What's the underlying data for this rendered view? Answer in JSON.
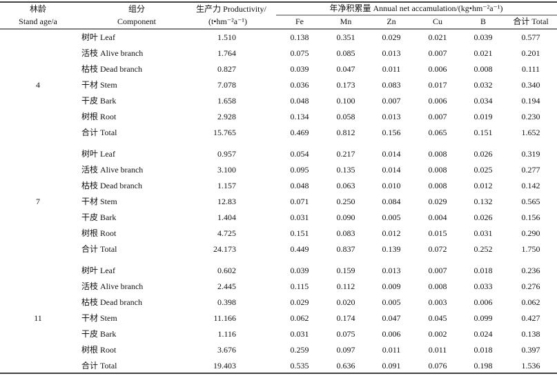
{
  "header": {
    "age": [
      "林龄",
      "Stand age/a"
    ],
    "component": [
      "组分",
      "Component"
    ],
    "productivity": [
      "生产力 Productivity/",
      "(t•hm⁻²a⁻¹)"
    ],
    "accumulation": "年净积累量 Annual net accamulation/(kg•hm⁻²a⁻¹)",
    "elements": [
      "Fe",
      "Mn",
      "Zn",
      "Cu",
      "B",
      "合计 Total"
    ]
  },
  "table": {
    "groups": [
      {
        "age": "4",
        "rows": [
          [
            "树叶 Leaf",
            "1.510",
            "0.138",
            "0.351",
            "0.029",
            "0.021",
            "0.039",
            "0.577"
          ],
          [
            "活枝 Alive branch",
            "1.764",
            "0.075",
            "0.085",
            "0.013",
            "0.007",
            "0.021",
            "0.201"
          ],
          [
            "枯枝 Dead branch",
            "0.827",
            "0.039",
            "0.047",
            "0.011",
            "0.006",
            "0.008",
            "0.111"
          ],
          [
            "干材 Stem",
            "7.078",
            "0.036",
            "0.173",
            "0.083",
            "0.017",
            "0.032",
            "0.340"
          ],
          [
            "干皮 Bark",
            "1.658",
            "0.048",
            "0.100",
            "0.007",
            "0.006",
            "0.034",
            "0.194"
          ],
          [
            "树根 Root",
            "2.928",
            "0.134",
            "0.058",
            "0.013",
            "0.007",
            "0.019",
            "0.230"
          ],
          [
            "合计 Total",
            "15.765",
            "0.469",
            "0.812",
            "0.156",
            "0.065",
            "0.151",
            "1.652"
          ]
        ]
      },
      {
        "age": "7",
        "rows": [
          [
            "树叶 Leaf",
            "0.957",
            "0.054",
            "0.217",
            "0.014",
            "0.008",
            "0.026",
            "0.319"
          ],
          [
            "活枝 Alive branch",
            "3.100",
            "0.095",
            "0.135",
            "0.014",
            "0.008",
            "0.025",
            "0.277"
          ],
          [
            "枯枝 Dead branch",
            "1.157",
            "0.048",
            "0.063",
            "0.010",
            "0.008",
            "0.012",
            "0.142"
          ],
          [
            "干材 Stem",
            "12.83",
            "0.071",
            "0.250",
            "0.084",
            "0.029",
            "0.132",
            "0.565"
          ],
          [
            "干皮 Bark",
            "1.404",
            "0.031",
            "0.090",
            "0.005",
            "0.004",
            "0.026",
            "0.156"
          ],
          [
            "树根 Root",
            "4.725",
            "0.151",
            "0.083",
            "0.012",
            "0.015",
            "0.031",
            "0.290"
          ],
          [
            "合计 Total",
            "24.173",
            "0.449",
            "0.837",
            "0.139",
            "0.072",
            "0.252",
            "1.750"
          ]
        ]
      },
      {
        "age": "11",
        "rows": [
          [
            "树叶 Leaf",
            "0.602",
            "0.039",
            "0.159",
            "0.013",
            "0.007",
            "0.018",
            "0.236"
          ],
          [
            "活枝 Alive branch",
            "2.445",
            "0.115",
            "0.112",
            "0.009",
            "0.008",
            "0.033",
            "0.276"
          ],
          [
            "枯枝 Dead branch",
            "0.398",
            "0.029",
            "0.020",
            "0.005",
            "0.003",
            "0.006",
            "0.062"
          ],
          [
            "干材 Stem",
            "11.166",
            "0.062",
            "0.174",
            "0.047",
            "0.045",
            "0.099",
            "0.427"
          ],
          [
            "干皮 Bark",
            "1.116",
            "0.031",
            "0.075",
            "0.006",
            "0.002",
            "0.024",
            "0.138"
          ],
          [
            "树根 Root",
            "3.676",
            "0.259",
            "0.097",
            "0.011",
            "0.011",
            "0.018",
            "0.397"
          ],
          [
            "合计 Total",
            "19.403",
            "0.535",
            "0.636",
            "0.091",
            "0.076",
            "0.198",
            "1.536"
          ]
        ]
      }
    ]
  }
}
